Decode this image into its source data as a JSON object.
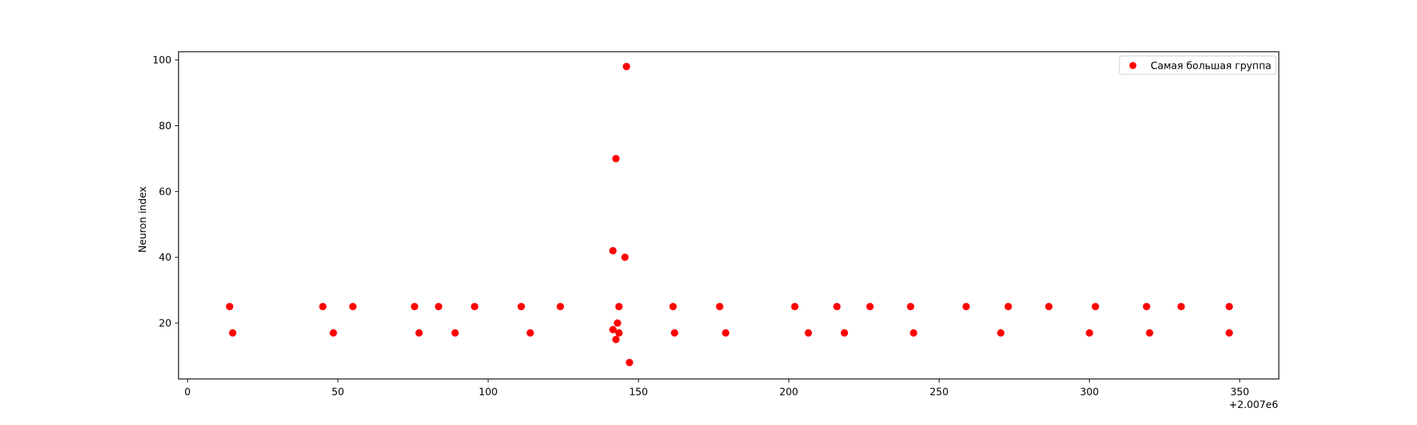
{
  "chart_data": {
    "type": "scatter",
    "title": "",
    "xlabel": "",
    "ylabel": "Neuron index",
    "x_offset_label": "+2.007e6",
    "xlim": [
      -3,
      363
    ],
    "ylim": [
      3,
      102.5
    ],
    "x_ticks": [
      {
        "value": 0,
        "label": "0"
      },
      {
        "value": 50,
        "label": "50"
      },
      {
        "value": 100,
        "label": "100"
      },
      {
        "value": 150,
        "label": "150"
      },
      {
        "value": 200,
        "label": "200"
      },
      {
        "value": 250,
        "label": "250"
      },
      {
        "value": 300,
        "label": "300"
      },
      {
        "value": 350,
        "label": "350"
      }
    ],
    "y_ticks": [
      {
        "value": 20,
        "label": "20"
      },
      {
        "value": 40,
        "label": "40"
      },
      {
        "value": 60,
        "label": "60"
      },
      {
        "value": 80,
        "label": "80"
      },
      {
        "value": 100,
        "label": "100"
      }
    ],
    "grid": false,
    "legend_position": "top-right",
    "series": [
      {
        "name": "Самая большая группа",
        "color": "#ff0000",
        "points": [
          {
            "x": 14,
            "y": 25
          },
          {
            "x": 15,
            "y": 17
          },
          {
            "x": 45,
            "y": 25
          },
          {
            "x": 48.5,
            "y": 17
          },
          {
            "x": 55,
            "y": 25
          },
          {
            "x": 75.5,
            "y": 25
          },
          {
            "x": 77,
            "y": 17
          },
          {
            "x": 83.5,
            "y": 25
          },
          {
            "x": 89,
            "y": 17
          },
          {
            "x": 95.5,
            "y": 25
          },
          {
            "x": 111,
            "y": 25
          },
          {
            "x": 114,
            "y": 17
          },
          {
            "x": 124,
            "y": 25
          },
          {
            "x": 141.5,
            "y": 42
          },
          {
            "x": 141.5,
            "y": 18
          },
          {
            "x": 142.5,
            "y": 70
          },
          {
            "x": 142.5,
            "y": 15
          },
          {
            "x": 143,
            "y": 20
          },
          {
            "x": 143.5,
            "y": 25
          },
          {
            "x": 143.5,
            "y": 17
          },
          {
            "x": 145.5,
            "y": 40
          },
          {
            "x": 146,
            "y": 98
          },
          {
            "x": 147,
            "y": 8
          },
          {
            "x": 161.5,
            "y": 25
          },
          {
            "x": 162,
            "y": 17
          },
          {
            "x": 177,
            "y": 25
          },
          {
            "x": 179,
            "y": 17
          },
          {
            "x": 202,
            "y": 25
          },
          {
            "x": 206.5,
            "y": 17
          },
          {
            "x": 216,
            "y": 25
          },
          {
            "x": 218.5,
            "y": 17
          },
          {
            "x": 227,
            "y": 25
          },
          {
            "x": 240.5,
            "y": 25
          },
          {
            "x": 241.5,
            "y": 17
          },
          {
            "x": 259,
            "y": 25
          },
          {
            "x": 270.5,
            "y": 17
          },
          {
            "x": 273,
            "y": 25
          },
          {
            "x": 286.5,
            "y": 25
          },
          {
            "x": 300,
            "y": 17
          },
          {
            "x": 302,
            "y": 25
          },
          {
            "x": 319,
            "y": 25
          },
          {
            "x": 320,
            "y": 17
          },
          {
            "x": 330.5,
            "y": 25
          },
          {
            "x": 346.5,
            "y": 25
          },
          {
            "x": 346.5,
            "y": 17
          }
        ]
      }
    ]
  }
}
